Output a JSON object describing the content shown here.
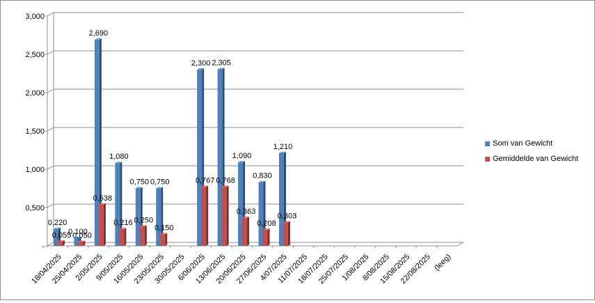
{
  "chart_data": {
    "type": "bar",
    "variant": "3d-clustered-column",
    "title": "",
    "xlabel": "",
    "ylabel": "",
    "ylim": [
      0,
      3
    ],
    "yticks": [
      "-",
      "0,500",
      "1,000",
      "1,500",
      "2,000",
      "2,500",
      "3,000"
    ],
    "grid": true,
    "legend_position": "right",
    "categories": [
      "18/04/2025",
      "25/04/2025",
      "2/05/2025",
      "9/05/2025",
      "16/05/2025",
      "23/05/2025",
      "30/05/2025",
      "6/06/2025",
      "13/06/2025",
      "20/06/2025",
      "27/06/2025",
      "4/07/2025",
      "11/07/2025",
      "18/07/2025",
      "25/07/2025",
      "1/08/2025",
      "8/08/2025",
      "15/08/2025",
      "22/08/2025",
      "(leeg)"
    ],
    "series": [
      {
        "name": "Som van Gewicht",
        "color": "#4f81bd",
        "values": [
          0.22,
          0.1,
          2.69,
          1.08,
          0.75,
          0.75,
          null,
          2.3,
          2.305,
          1.09,
          0.83,
          1.21,
          null,
          null,
          null,
          null,
          null,
          null,
          null,
          null
        ],
        "labels": [
          "0,220",
          "0,100",
          "2,690",
          "1,080",
          "0,750",
          "0,750",
          "",
          "2,300",
          "2,305",
          "1,090",
          "0,830",
          "1,210",
          "",
          "",
          "",
          "",
          "",
          "",
          "",
          ""
        ]
      },
      {
        "name": "Gemiddelde van Gewicht",
        "color": "#c0504d",
        "values": [
          0.055,
          0.05,
          0.538,
          0.216,
          0.25,
          0.15,
          null,
          0.767,
          0.768,
          0.363,
          0.208,
          0.303,
          null,
          null,
          null,
          null,
          null,
          null,
          null,
          null
        ],
        "labels": [
          "0,055",
          "0,050",
          "0,538",
          "0,216",
          "0,250",
          "0,150",
          "",
          "0,767",
          "0,768",
          "0,363",
          "0,208",
          "0,303",
          "",
          "",
          "",
          "",
          "",
          "",
          "",
          ""
        ]
      }
    ]
  }
}
